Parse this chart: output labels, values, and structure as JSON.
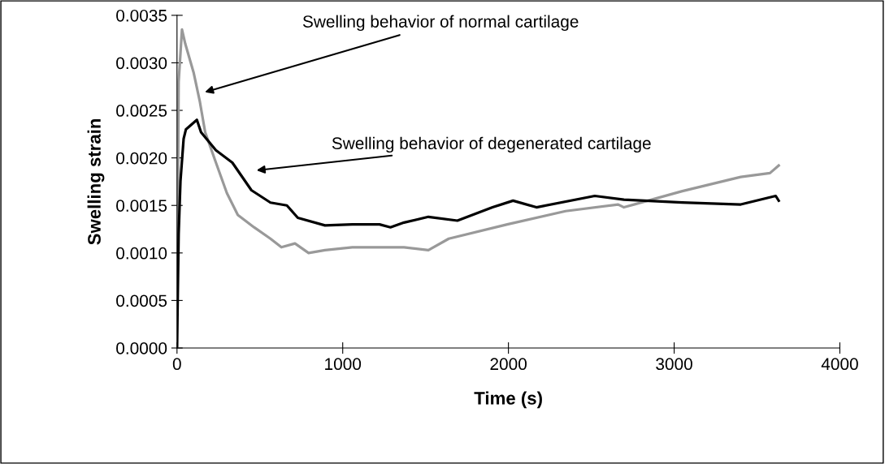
{
  "chart_data": {
    "type": "line",
    "xlabel": "Time (s)",
    "ylabel": "Swelling strain",
    "xlim": [
      0,
      4000
    ],
    "xticks": [
      0,
      1000,
      2000,
      3000,
      4000
    ],
    "ylim": [
      0,
      0.0035
    ],
    "yticks": [
      {
        "value": 0,
        "label": "0.0000"
      },
      {
        "value": 0.0005,
        "label": "0.0005"
      },
      {
        "value": 0.001,
        "label": "0.0010"
      },
      {
        "value": 0.0015,
        "label": "0.0015"
      },
      {
        "value": 0.002,
        "label": "0.0020"
      },
      {
        "value": 0.0025,
        "label": "0.0025"
      },
      {
        "value": 0.003,
        "label": "0.0030"
      },
      {
        "value": 0.0035,
        "label": "0.0035"
      }
    ],
    "grid": false,
    "legend": false,
    "marker": "none",
    "line_style": "solid",
    "series": [
      {
        "color": "#999999",
        "x": [
          0,
          10,
          30,
          50,
          100,
          137,
          170,
          235,
          301,
          367,
          465,
          564,
          630,
          712,
          794,
          893,
          1058,
          1222,
          1288,
          1370,
          1517,
          1640,
          1993,
          2345,
          2662,
          2697,
          3049,
          3402,
          3578,
          3631
        ],
        "values": [
          0,
          0.0028,
          0.00335,
          0.0032,
          0.0029,
          0.0026,
          0.00227,
          0.00195,
          0.00163,
          0.0014,
          0.00127,
          0.00115,
          0.00106,
          0.0011,
          0.001,
          0.00103,
          0.00106,
          0.00106,
          0.00106,
          0.00106,
          0.00103,
          0.00115,
          0.0013,
          0.00144,
          0.00151,
          0.00148,
          0.00165,
          0.0018,
          0.00184,
          0.00192
        ]
      },
      {
        "color": "#000000",
        "x": [
          0,
          10,
          21,
          40,
          54,
          120,
          145,
          235,
          334,
          449,
          564,
          663,
          729,
          893,
          1058,
          1222,
          1288,
          1370,
          1517,
          1692,
          1904,
          2028,
          2169,
          2521,
          2697,
          3049,
          3402,
          3613,
          3631
        ],
        "values": [
          0,
          0.0012,
          0.00176,
          0.0022,
          0.0023,
          0.0024,
          0.00227,
          0.00208,
          0.00195,
          0.00166,
          0.00153,
          0.0015,
          0.00137,
          0.00129,
          0.0013,
          0.0013,
          0.00127,
          0.00132,
          0.00138,
          0.00134,
          0.00148,
          0.00155,
          0.00148,
          0.0016,
          0.00156,
          0.00153,
          0.00151,
          0.0016,
          0.00155
        ]
      }
    ],
    "annotations": [
      "Swelling behavior of normal cartilage",
      "Swelling behavior of degenerated cartilage"
    ]
  }
}
